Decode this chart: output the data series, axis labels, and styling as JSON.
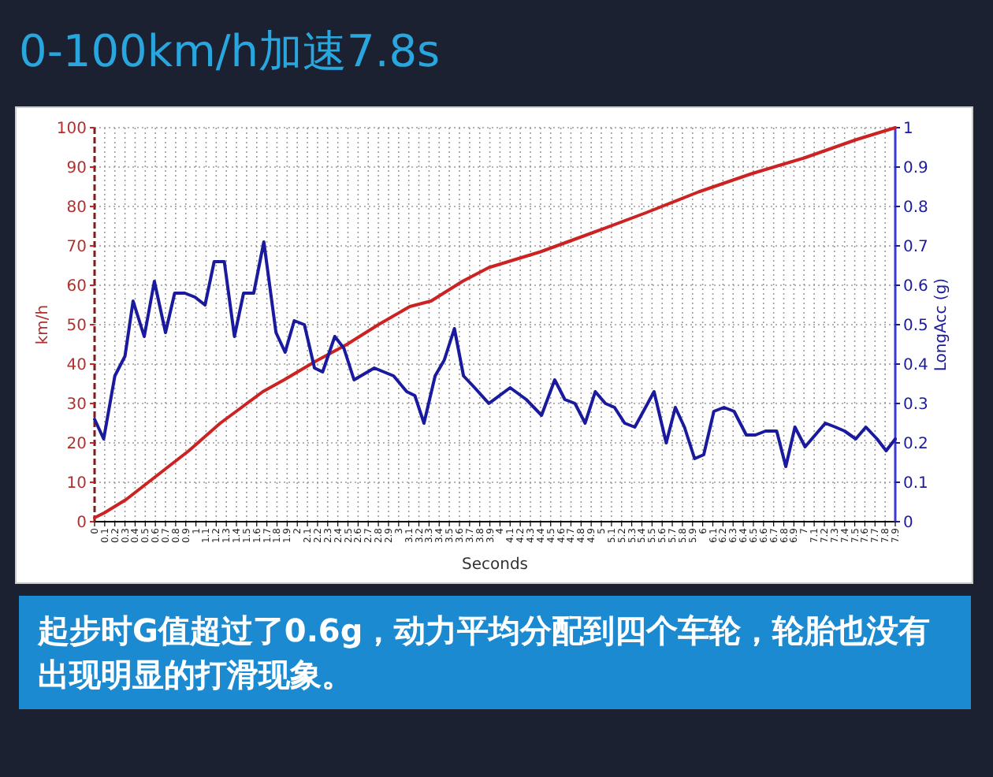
{
  "chart_data": {
    "type": "line",
    "title": "0-100km/h加速7.8s",
    "xlabel": "Seconds",
    "ylabel": "km/h",
    "y2label": "LongAcc (g)",
    "annotations": [
      "起步时G值超过了0.6g，动力平均分配到四个车轮，轮胎也没有出现明显的打滑现象。"
    ],
    "xlim": [
      0,
      7.9
    ],
    "xticks": [
      0,
      0.1,
      0.2,
      0.3,
      0.4,
      0.5,
      0.6,
      0.7,
      0.8,
      0.9,
      1,
      1.1,
      1.2,
      1.3,
      1.4,
      1.5,
      1.6,
      1.7,
      1.8,
      1.9,
      2,
      2.1,
      2.2,
      2.3,
      2.4,
      2.5,
      2.6,
      2.7,
      2.8,
      2.9,
      3,
      3.1,
      3.2,
      3.3,
      3.4,
      3.5,
      3.6,
      3.7,
      3.8,
      3.9,
      4,
      4.1,
      4.2,
      4.3,
      4.4,
      4.5,
      4.6,
      4.7,
      4.8,
      4.9,
      5,
      5.1,
      5.2,
      5.3,
      5.4,
      5.5,
      5.6,
      5.7,
      5.8,
      5.9,
      6,
      6.1,
      6.2,
      6.3,
      6.4,
      6.5,
      6.6,
      6.7,
      6.8,
      6.9,
      7,
      7.1,
      7.2,
      7.3,
      7.4,
      7.5,
      7.6,
      7.7,
      7.8,
      7.9
    ],
    "ylim": [
      0,
      100
    ],
    "yticks": [
      0,
      10,
      20,
      30,
      40,
      50,
      60,
      70,
      80,
      90,
      100
    ],
    "y2lim": [
      0,
      1
    ],
    "y2ticks": [
      0,
      0.1,
      0.2,
      0.3,
      0.4,
      0.5,
      0.6,
      0.7,
      0.8,
      0.9,
      1
    ],
    "grid": true,
    "series": [
      {
        "color": "#cc2222",
        "x": [
          0,
          0.1,
          0.31,
          0.62,
          0.93,
          1.24,
          1.45,
          1.66,
          1.87,
          2.18,
          2.49,
          2.8,
          3.11,
          3.32,
          3.63,
          3.89,
          4.4,
          4.92,
          5.44,
          5.96,
          6.48,
          7.0,
          7.52,
          7.9
        ],
        "values": [
          1,
          2.3,
          5.6,
          11.8,
          18,
          25,
          29,
          33,
          36,
          40.7,
          45,
          50,
          54.6,
          56,
          61,
          64.5,
          68.5,
          73.4,
          78.4,
          83.7,
          88.3,
          92.3,
          97,
          100
        ]
      },
      {
        "color": "#1a1a9e",
        "axis": "y2",
        "x": [
          0,
          0.09,
          0.2,
          0.3,
          0.38,
          0.49,
          0.59,
          0.7,
          0.79,
          0.89,
          0.99,
          1.09,
          1.18,
          1.28,
          1.38,
          1.47,
          1.57,
          1.67,
          1.79,
          1.88,
          1.97,
          2.07,
          2.17,
          2.25,
          2.37,
          2.46,
          2.56,
          2.76,
          2.95,
          3.08,
          3.16,
          3.25,
          3.36,
          3.45,
          3.55,
          3.64,
          3.75,
          3.89,
          4.1,
          4.26,
          4.41,
          4.54,
          4.64,
          4.74,
          4.84,
          4.94,
          5.04,
          5.13,
          5.23,
          5.33,
          5.52,
          5.64,
          5.73,
          5.82,
          5.92,
          6.01,
          6.11,
          6.21,
          6.31,
          6.43,
          6.52,
          6.62,
          6.73,
          6.82,
          6.91,
          7.01,
          7.21,
          7.31,
          7.4,
          7.51,
          7.61,
          7.72,
          7.81,
          7.9
        ],
        "values": [
          0.26,
          0.21,
          0.37,
          0.42,
          0.56,
          0.47,
          0.61,
          0.48,
          0.58,
          0.58,
          0.57,
          0.55,
          0.66,
          0.66,
          0.47,
          0.58,
          0.58,
          0.71,
          0.48,
          0.43,
          0.51,
          0.5,
          0.39,
          0.38,
          0.47,
          0.44,
          0.36,
          0.39,
          0.37,
          0.33,
          0.32,
          0.25,
          0.37,
          0.41,
          0.49,
          0.37,
          0.34,
          0.3,
          0.34,
          0.31,
          0.27,
          0.36,
          0.31,
          0.3,
          0.25,
          0.33,
          0.3,
          0.29,
          0.25,
          0.24,
          0.33,
          0.2,
          0.29,
          0.24,
          0.16,
          0.17,
          0.28,
          0.29,
          0.28,
          0.22,
          0.22,
          0.23,
          0.23,
          0.14,
          0.24,
          0.19,
          0.25,
          0.24,
          0.23,
          0.21,
          0.24,
          0.21,
          0.18,
          0.21
        ]
      }
    ]
  }
}
